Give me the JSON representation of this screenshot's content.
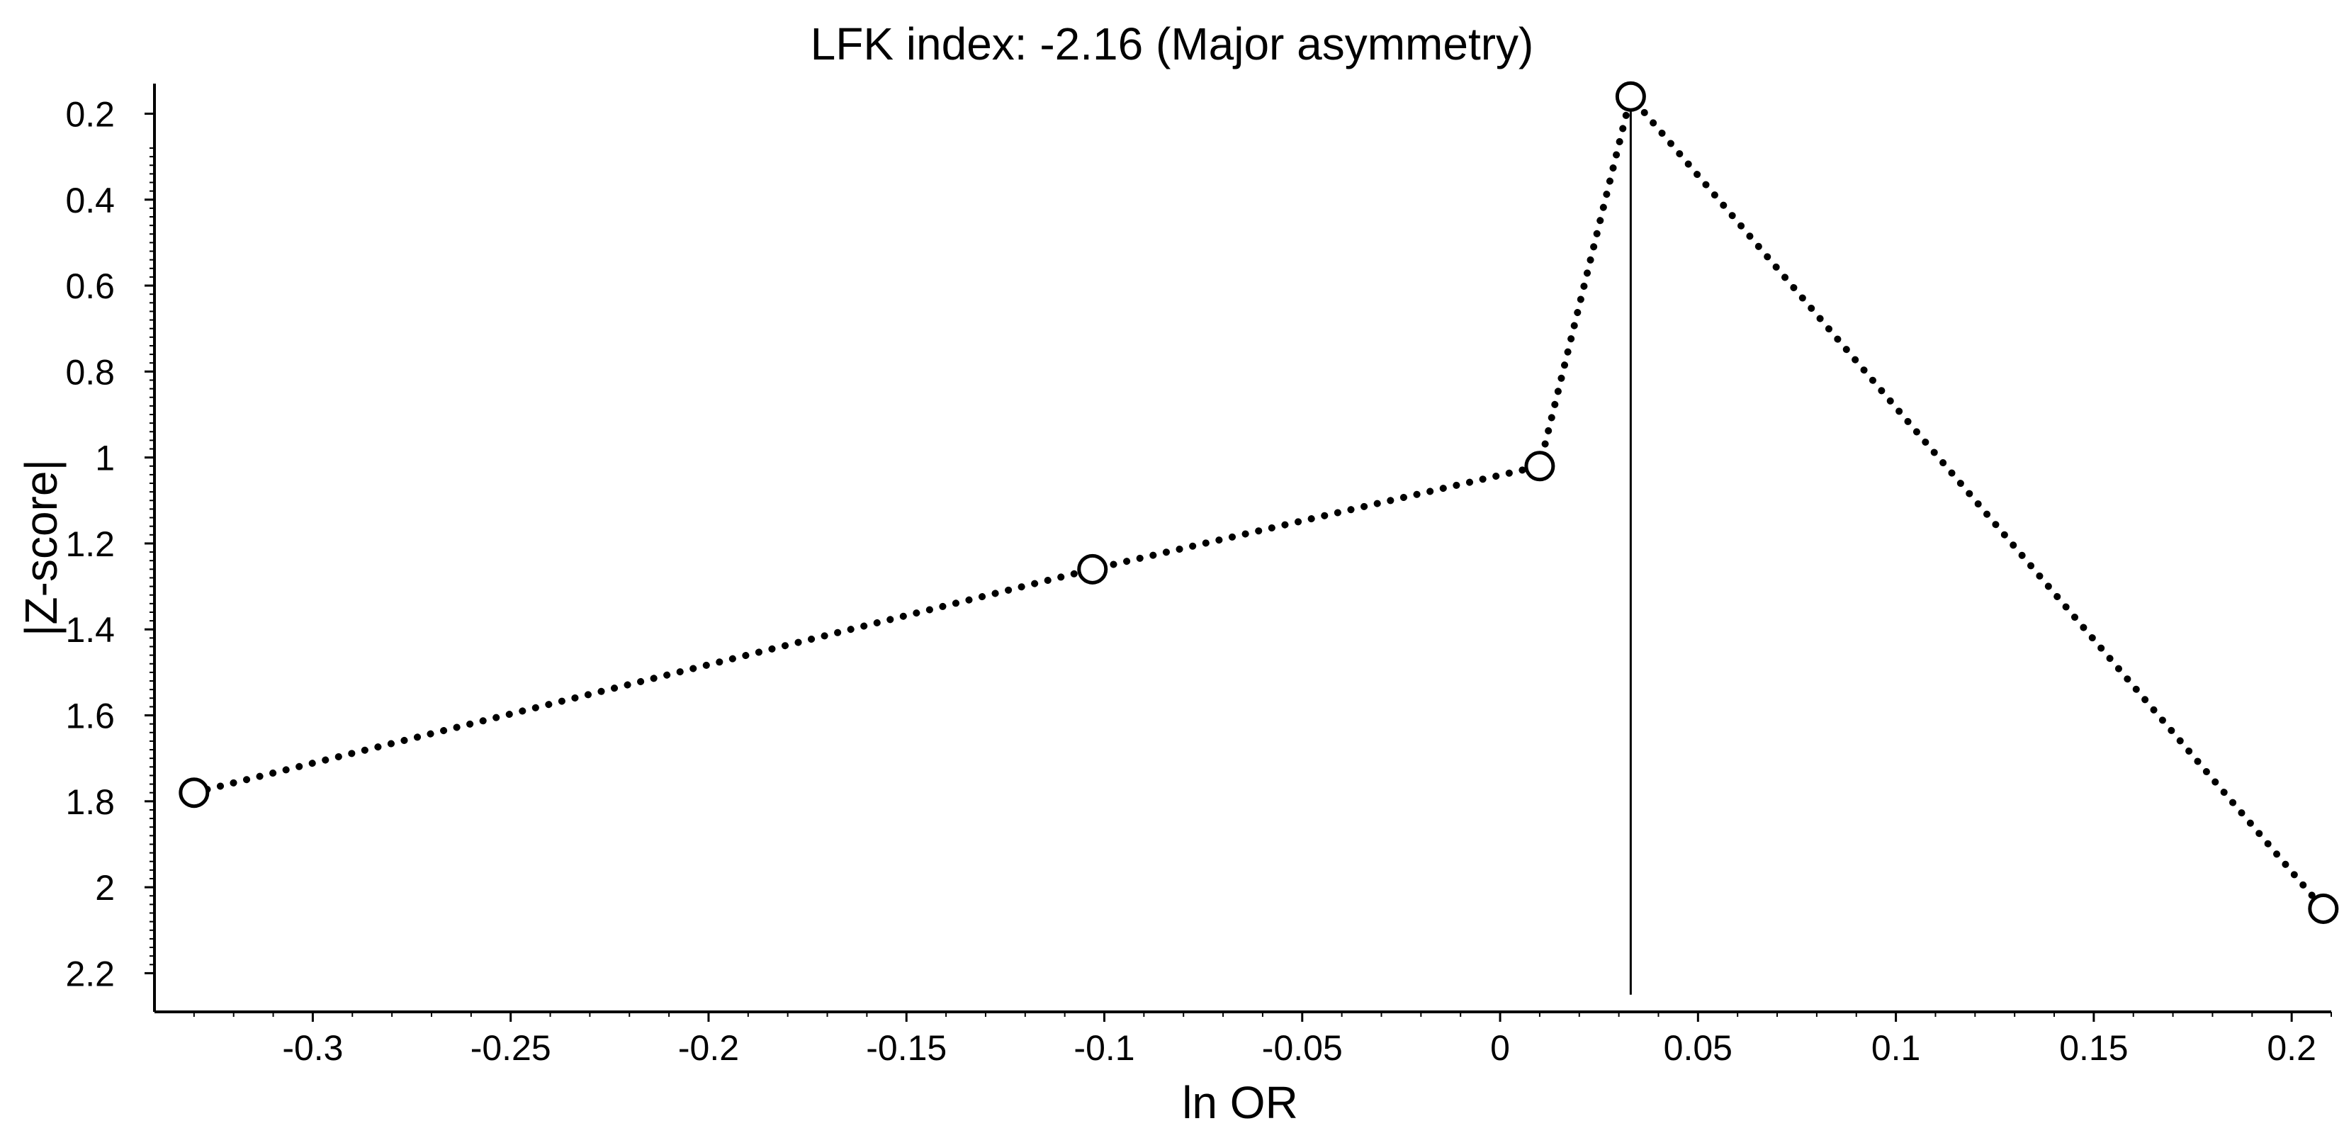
{
  "chart_data": {
    "type": "line",
    "title": "LFK index: -2.16 (Major asymmetry)",
    "xlabel": "ln OR",
    "ylabel": "|Z-score|",
    "xlim": [
      -0.34,
      0.21
    ],
    "ylim": [
      0.13,
      2.29
    ],
    "y_inverted": true,
    "x_ticks": [
      -0.3,
      -0.25,
      -0.2,
      -0.15,
      -0.1,
      -0.05,
      0,
      0.05,
      0.1,
      0.15,
      0.2
    ],
    "x_tick_labels": [
      "-0.3",
      "-0.25",
      "-0.2",
      "-0.15",
      "-0.1",
      "-0.05",
      "0",
      "0.05",
      "0.1",
      "0.15",
      "0.2"
    ],
    "y_ticks": [
      0.2,
      0.4,
      0.6,
      0.8,
      1,
      1.2,
      1.4,
      1.6,
      1.8,
      2,
      2.2
    ],
    "y_tick_labels": [
      "0.2",
      "0.4",
      "0.6",
      "0.8",
      "1",
      "1.2",
      "1.4",
      "1.6",
      "1.8",
      "2",
      "2.2"
    ],
    "series": [
      {
        "x": [
          -0.33,
          -0.103,
          0.01,
          0.033,
          0.208
        ],
        "y": [
          1.78,
          1.26,
          1.02,
          0.16,
          2.05
        ],
        "line_style": "dotted",
        "marker": "open-circle",
        "color": "#000000"
      }
    ],
    "reference_line": {
      "x": 0.033,
      "orientation": "vertical"
    },
    "grid": false,
    "legend": "none"
  }
}
